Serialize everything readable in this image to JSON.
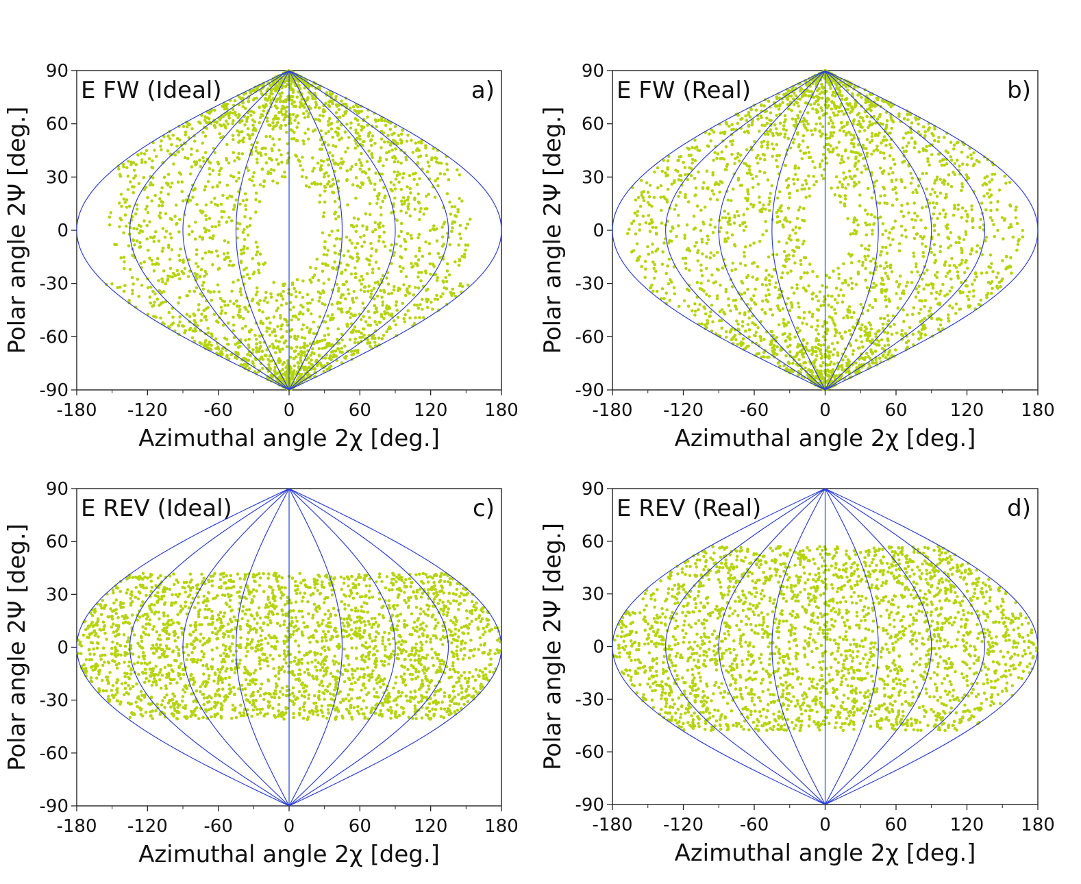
{
  "chart_data": [
    {
      "type": "scatter",
      "projection": "sinusoidal",
      "title": "E FW (Ideal)",
      "panel_label": "a)",
      "xlabel": "Azimuthal angle 2χ [deg.]",
      "ylabel": "Polar angle 2Ψ [deg.]",
      "xlim": [
        -180,
        180
      ],
      "ylim": [
        -90,
        90
      ],
      "xticks": [
        "-180",
        "-120",
        "-60",
        "0",
        "60",
        "120",
        "180"
      ],
      "yticks": [
        "90",
        "60",
        "30",
        "0",
        "-30",
        "-60",
        "-90"
      ],
      "meridians_deg": [
        -180,
        -135,
        -90,
        -45,
        0,
        45,
        90,
        135,
        180
      ],
      "coverage": {
        "psi_range": [
          -90,
          90
        ],
        "edge_cut": {
          "chi_limit": 155,
          "psi_half": 30
        },
        "center_hole": {
          "chi_radius": 28,
          "psi_radius": 28
        }
      },
      "colors": {
        "points": "#b5d40f",
        "grid": "#2c3fd6"
      }
    },
    {
      "type": "scatter",
      "projection": "sinusoidal",
      "title": "E FW (Real)",
      "panel_label": "b)",
      "xlabel": "Azimuthal angle 2χ [deg.]",
      "ylabel": "Polar angle 2Ψ [deg.]",
      "xlim": [
        -180,
        180
      ],
      "ylim": [
        -90,
        90
      ],
      "xticks": [
        "-180",
        "-120",
        "-60",
        "0",
        "60",
        "120",
        "180"
      ],
      "yticks": [
        "90",
        "60",
        "30",
        "0",
        "-30",
        "-60",
        "-90"
      ],
      "meridians_deg": [
        -180,
        -135,
        -90,
        -45,
        0,
        45,
        90,
        135,
        180
      ],
      "coverage": {
        "psi_range": [
          -90,
          90
        ],
        "edge_cut": {
          "chi_limit": 168,
          "psi_half": 22
        },
        "center_hole": {
          "chi_radius": 18,
          "psi_radius": 22
        }
      },
      "colors": {
        "points": "#b5d40f",
        "grid": "#2c3fd6"
      }
    },
    {
      "type": "scatter",
      "projection": "sinusoidal",
      "title": "E REV (Ideal)",
      "panel_label": "c)",
      "xlabel": "Azimuthal angle 2χ [deg.]",
      "ylabel": "Polar angle 2Ψ [deg.]",
      "xlim": [
        -180,
        180
      ],
      "ylim": [
        -90,
        90
      ],
      "xticks": [
        "-180",
        "-120",
        "-60",
        "0",
        "60",
        "120",
        "180"
      ],
      "yticks": [
        "90",
        "60",
        "30",
        "0",
        "-30",
        "-60",
        "-90"
      ],
      "meridians_deg": [
        -180,
        -135,
        -90,
        -45,
        0,
        45,
        90,
        135,
        180
      ],
      "coverage": {
        "psi_range": [
          -41,
          42
        ],
        "edge_cut": null,
        "center_hole": null
      },
      "colors": {
        "points": "#b5d40f",
        "grid": "#2c3fd6"
      }
    },
    {
      "type": "scatter",
      "projection": "sinusoidal",
      "title": "E REV (Real)",
      "panel_label": "d)",
      "xlabel": "Azimuthal angle 2χ [deg.]",
      "ylabel": "Polar angle 2Ψ [deg.]",
      "xlim": [
        -180,
        180
      ],
      "ylim": [
        -90,
        90
      ],
      "xticks": [
        "-180",
        "-120",
        "-60",
        "0",
        "60",
        "120",
        "180"
      ],
      "yticks": [
        "90",
        "60",
        "30",
        "0",
        "-30",
        "-60",
        "-90"
      ],
      "meridians_deg": [
        -180,
        -135,
        -90,
        -45,
        0,
        45,
        90,
        135,
        180
      ],
      "coverage": {
        "psi_range": [
          -48,
          57
        ],
        "edge_cut": null,
        "center_hole": null
      },
      "colors": {
        "points": "#b5d40f",
        "grid": "#2c3fd6"
      }
    }
  ]
}
